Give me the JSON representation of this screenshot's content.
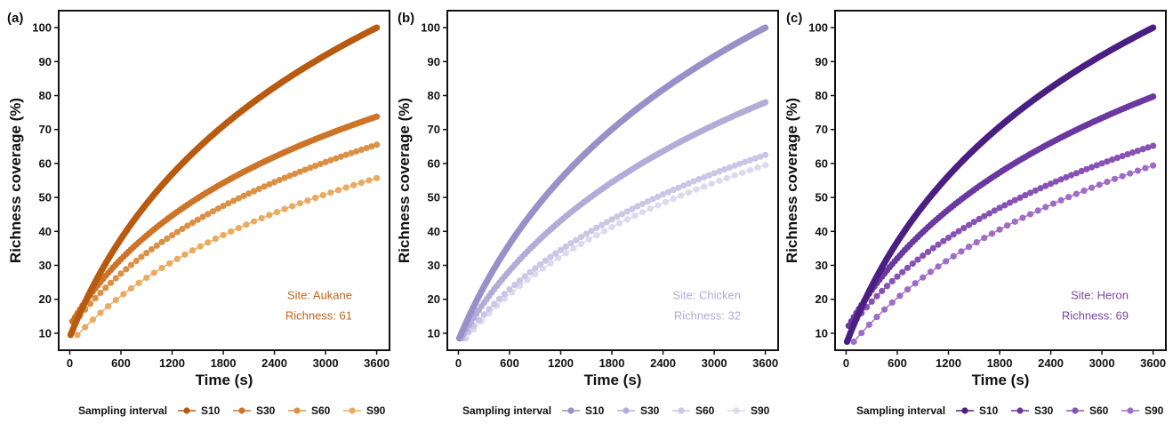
{
  "chart_data": [
    {
      "type": "scatter",
      "panel_label": "(a)",
      "xlabel": "Time (s)",
      "ylabel": "Richness coverage (%)",
      "xlim": [
        -130,
        3750
      ],
      "ylim": [
        5,
        105
      ],
      "xticks": [
        0,
        600,
        1200,
        1800,
        2400,
        3000,
        3600
      ],
      "yticks": [
        10,
        20,
        30,
        40,
        50,
        60,
        70,
        80,
        90,
        100
      ],
      "grid": false,
      "annotation": {
        "site": "Site: Aukane",
        "richness": "Richness: 61",
        "color": "#c4651a"
      },
      "legend": {
        "title": "Sampling interval",
        "placement": "bottom",
        "entries": [
          {
            "name": "S10",
            "color": "#b85a10"
          },
          {
            "name": "S30",
            "color": "#cd7428"
          },
          {
            "name": "S60",
            "color": "#dc9044"
          },
          {
            "name": "S90",
            "color": "#eaaa60"
          }
        ]
      },
      "series": [
        {
          "name": "S10",
          "interval": 10,
          "color": "#b85a10",
          "start": [
            10,
            9.5
          ],
          "end": [
            3600,
            100.0
          ],
          "k": 900
        },
        {
          "name": "S30",
          "interval": 30,
          "color": "#cd7428",
          "start": [
            30,
            13.5
          ],
          "end": [
            3600,
            73.8
          ],
          "k": 900
        },
        {
          "name": "S60",
          "interval": 60,
          "color": "#dc9044",
          "start": [
            60,
            13.3
          ],
          "end": [
            3600,
            65.5
          ],
          "k": 1100
        },
        {
          "name": "S90",
          "interval": 90,
          "color": "#eaaa60",
          "start": [
            90,
            9.5
          ],
          "end": [
            3600,
            55.7
          ],
          "k": 1300
        }
      ]
    },
    {
      "type": "scatter",
      "panel_label": "(b)",
      "xlabel": "Time (s)",
      "ylabel": "Richness coverage (%)",
      "xlim": [
        -130,
        3750
      ],
      "ylim": [
        5,
        105
      ],
      "xticks": [
        0,
        600,
        1200,
        1800,
        2400,
        3000,
        3600
      ],
      "yticks": [
        10,
        20,
        30,
        40,
        50,
        60,
        70,
        80,
        90,
        100
      ],
      "grid": false,
      "annotation": {
        "site": "Site: Chicken",
        "richness": "Richness: 32",
        "color": "#b2a9d6"
      },
      "legend": {
        "title": "Sampling interval",
        "placement": "bottom",
        "entries": [
          {
            "name": "S10",
            "color": "#9890c8"
          },
          {
            "name": "S30",
            "color": "#b3acd8"
          },
          {
            "name": "S60",
            "color": "#cbc5e6"
          },
          {
            "name": "S90",
            "color": "#ded8f0"
          }
        ]
      },
      "series": [
        {
          "name": "S10",
          "interval": 10,
          "color": "#9890c8",
          "start": [
            10,
            8.5
          ],
          "end": [
            3600,
            100.0
          ],
          "k": 1000
        },
        {
          "name": "S30",
          "interval": 30,
          "color": "#b3acd8",
          "start": [
            30,
            8.5
          ],
          "end": [
            3600,
            78.0
          ],
          "k": 1100
        },
        {
          "name": "S60",
          "interval": 60,
          "color": "#cbc5e6",
          "start": [
            60,
            8.5
          ],
          "end": [
            3600,
            62.5
          ],
          "k": 1200
        },
        {
          "name": "S90",
          "interval": 90,
          "color": "#ded8f0",
          "start": [
            90,
            8.5
          ],
          "end": [
            3600,
            59.5
          ],
          "k": 1200
        }
      ]
    },
    {
      "type": "scatter",
      "panel_label": "(c)",
      "xlabel": "Time (s)",
      "ylabel": "Richness coverage (%)",
      "xlim": [
        -130,
        3750
      ],
      "ylim": [
        5,
        105
      ],
      "xticks": [
        0,
        600,
        1200,
        1800,
        2400,
        3000,
        3600
      ],
      "yticks": [
        10,
        20,
        30,
        40,
        50,
        60,
        70,
        80,
        90,
        100
      ],
      "grid": false,
      "annotation": {
        "site": "Site: Heron",
        "richness": "Richness: 69",
        "color": "#7a45a8"
      },
      "legend": {
        "title": "Sampling interval",
        "placement": "bottom",
        "entries": [
          {
            "name": "S10",
            "color": "#4a1f82"
          },
          {
            "name": "S30",
            "color": "#6b38a0"
          },
          {
            "name": "S60",
            "color": "#8752b4"
          },
          {
            "name": "S90",
            "color": "#a06cc6"
          }
        ]
      },
      "series": [
        {
          "name": "S10",
          "interval": 10,
          "color": "#4a1f82",
          "start": [
            10,
            7.5
          ],
          "end": [
            3600,
            100.0
          ],
          "k": 850
        },
        {
          "name": "S30",
          "interval": 30,
          "color": "#6b38a0",
          "start": [
            30,
            12.2
          ],
          "end": [
            3600,
            79.7
          ],
          "k": 1000
        },
        {
          "name": "S60",
          "interval": 60,
          "color": "#8752b4",
          "start": [
            60,
            12.2
          ],
          "end": [
            3600,
            65.2
          ],
          "k": 1100
        },
        {
          "name": "S90",
          "interval": 90,
          "color": "#a06cc6",
          "start": [
            90,
            7.5
          ],
          "end": [
            3600,
            59.4
          ],
          "k": 1300
        }
      ]
    }
  ]
}
